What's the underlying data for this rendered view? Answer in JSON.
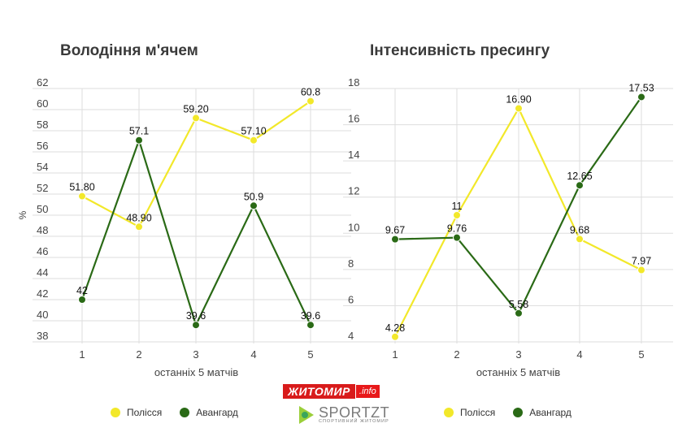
{
  "colors": {
    "polissia": "#f2e82a",
    "avangard": "#2a6a16",
    "grid": "#dddddd",
    "axis_text": "#444444"
  },
  "chart_data": [
    {
      "type": "line",
      "title": "Володіння м'ячем",
      "xlabel": "останніх 5 матчів",
      "ylabel": "%",
      "categories": [
        "1",
        "2",
        "3",
        "4",
        "5"
      ],
      "ylim": [
        38,
        62
      ],
      "yticks": [
        "38",
        "40",
        "42",
        "44",
        "46",
        "48",
        "50",
        "52",
        "54",
        "56",
        "58",
        "60",
        "62"
      ],
      "series": [
        {
          "name": "Полісся",
          "values": [
            51.8,
            48.9,
            59.2,
            57.1,
            60.8
          ],
          "labels": [
            "51.80",
            "48.90",
            "59.20",
            "57.10",
            "60.8"
          ]
        },
        {
          "name": "Авангард",
          "values": [
            42,
            57.1,
            39.6,
            50.9,
            39.6
          ],
          "labels": [
            "42",
            "57.1",
            "39.6",
            "50.9",
            "39.6"
          ]
        }
      ]
    },
    {
      "type": "line",
      "title": "Інтенсивність пресингу",
      "xlabel": "останніх 5 матчів",
      "ylabel": "",
      "categories": [
        "1",
        "2",
        "3",
        "4",
        "5"
      ],
      "ylim": [
        4,
        18
      ],
      "yticks": [
        "4",
        "6",
        "8",
        "10",
        "12",
        "14",
        "16",
        "18"
      ],
      "series": [
        {
          "name": "Полісся",
          "values": [
            4.28,
            11,
            16.9,
            9.68,
            7.97
          ],
          "labels": [
            "4.28",
            "11",
            "16.90",
            "9.68",
            "7.97"
          ]
        },
        {
          "name": "Авангард",
          "values": [
            9.67,
            9.76,
            5.58,
            12.65,
            17.53
          ],
          "labels": [
            "9.67",
            "9.76",
            "5.58",
            "12.65",
            "17.53"
          ]
        }
      ]
    }
  ],
  "legend": {
    "polissia": "Полісся",
    "avangard": "Авангард"
  },
  "logos": {
    "zhytomyr_main": "ЖИТОМИР",
    "zhytomyr_suffix": ".info",
    "sportzt_main": "SPORTZT",
    "sportzt_sub": "спортивний житомир"
  }
}
